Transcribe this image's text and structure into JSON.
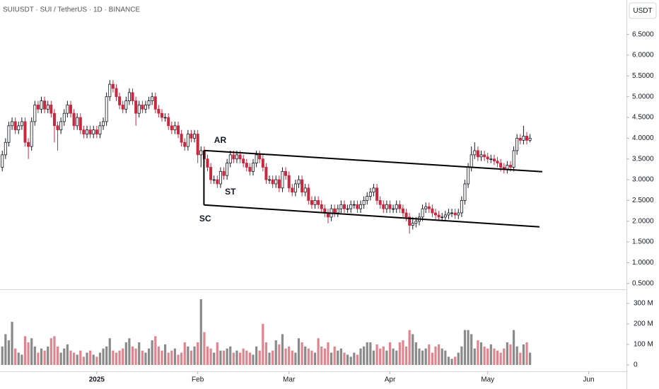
{
  "chart_data": {
    "type": "candlestick",
    "title": "SUIUSDT · SUI / TetherUS · 1D · BINANCE",
    "currency": "USDT",
    "open": [
      3.3,
      3.6,
      3.9,
      4.3,
      4.4,
      4.2,
      4.3,
      4.4,
      3.9,
      3.8,
      4.4,
      4.8,
      4.7,
      4.9,
      4.7,
      4.8,
      4.6,
      4.3,
      4.2,
      4.4,
      4.6,
      4.8,
      4.6,
      4.3,
      4.5,
      4.2,
      4.1,
      4.2,
      4.1,
      4.2,
      4.1,
      4.3,
      4.4,
      5.0,
      5.3,
      5.2,
      5.0,
      4.8,
      4.7,
      4.9,
      5.1,
      4.9,
      4.6,
      4.8,
      4.7,
      4.8,
      4.9,
      5.0,
      4.7,
      4.6,
      4.5,
      4.5,
      4.3,
      4.2,
      4.3,
      4.1,
      3.9,
      3.8,
      4.1,
      4.0,
      4.1,
      3.6,
      3.7,
      3.5,
      3.3,
      3.0,
      3.0,
      2.9,
      3.2,
      3.1,
      3.4,
      3.6,
      3.5,
      3.6,
      3.5,
      3.4,
      3.3,
      3.2,
      3.4,
      3.6,
      3.5,
      3.3,
      3.0,
      3.0,
      2.9,
      3.0,
      2.8,
      3.2,
      3.1,
      2.8,
      2.7,
      2.9,
      3.0,
      2.7,
      2.8,
      2.5,
      2.4,
      2.5,
      2.4,
      2.3,
      2.2,
      2.1,
      2.3,
      2.2,
      2.3,
      2.4,
      2.3,
      2.3,
      2.4,
      2.4,
      2.3,
      2.4,
      2.5,
      2.6,
      2.7,
      2.8,
      2.5,
      2.4,
      2.3,
      2.4,
      2.3,
      2.3,
      2.4,
      2.3,
      2.2,
      2.1,
      1.9,
      1.95,
      2.0,
      2.1,
      2.3,
      2.35,
      2.3,
      2.2,
      2.15,
      2.1,
      2.1,
      2.15,
      2.2,
      2.2,
      2.15,
      2.2,
      2.5,
      2.9,
      3.3,
      3.6,
      3.7,
      3.55,
      3.6,
      3.55,
      3.5,
      3.5,
      3.45,
      3.4,
      3.3,
      3.25,
      3.35,
      3.3,
      3.7,
      4.0,
      3.95,
      4.05,
      3.95
    ],
    "high": [
      3.7,
      4.0,
      4.4,
      4.5,
      4.5,
      4.4,
      4.5,
      4.5,
      4.0,
      4.5,
      4.9,
      4.9,
      5.0,
      5.0,
      4.9,
      4.9,
      4.7,
      4.4,
      4.5,
      4.7,
      4.9,
      4.9,
      4.7,
      4.6,
      4.6,
      4.3,
      4.3,
      4.3,
      4.3,
      4.3,
      4.4,
      4.5,
      5.1,
      5.4,
      5.4,
      5.3,
      5.1,
      4.9,
      5.0,
      5.2,
      5.2,
      5.0,
      4.9,
      4.9,
      4.9,
      5.0,
      5.1,
      5.1,
      4.8,
      4.7,
      4.6,
      4.6,
      4.4,
      4.4,
      4.4,
      4.2,
      4.0,
      4.2,
      4.2,
      4.2,
      4.2,
      3.8,
      3.8,
      3.6,
      3.4,
      3.1,
      3.1,
      3.3,
      3.3,
      3.5,
      3.7,
      3.7,
      3.7,
      3.7,
      3.6,
      3.5,
      3.4,
      3.5,
      3.7,
      3.7,
      3.6,
      3.4,
      3.1,
      3.1,
      3.1,
      3.1,
      3.3,
      3.3,
      3.2,
      2.9,
      3.0,
      3.1,
      3.1,
      2.9,
      2.9,
      2.6,
      2.6,
      2.6,
      2.5,
      2.4,
      2.3,
      2.4,
      2.4,
      2.4,
      2.5,
      2.5,
      2.4,
      2.5,
      2.5,
      2.5,
      2.5,
      2.6,
      2.7,
      2.8,
      2.9,
      2.9,
      2.6,
      2.5,
      2.5,
      2.5,
      2.4,
      2.5,
      2.5,
      2.4,
      2.3,
      2.2,
      2.1,
      2.1,
      2.2,
      2.4,
      2.45,
      2.45,
      2.4,
      2.3,
      2.25,
      2.2,
      2.25,
      2.3,
      2.3,
      2.3,
      2.3,
      2.6,
      3.0,
      3.4,
      3.8,
      3.9,
      3.8,
      3.7,
      3.7,
      3.65,
      3.6,
      3.6,
      3.55,
      3.5,
      3.4,
      3.45,
      3.45,
      3.8,
      4.1,
      4.1,
      4.3,
      4.15,
      4.1
    ],
    "low": [
      3.2,
      3.5,
      3.8,
      4.2,
      4.1,
      4.1,
      4.2,
      3.8,
      3.5,
      3.7,
      4.3,
      4.6,
      4.6,
      4.6,
      4.6,
      4.5,
      3.9,
      3.7,
      4.1,
      4.3,
      4.5,
      4.5,
      4.2,
      4.2,
      4.1,
      4.0,
      4.0,
      4.0,
      4.0,
      4.0,
      4.0,
      4.2,
      4.3,
      4.9,
      5.1,
      4.9,
      4.7,
      4.6,
      4.6,
      4.8,
      4.8,
      4.3,
      4.5,
      4.6,
      4.6,
      4.7,
      4.8,
      4.6,
      4.5,
      4.4,
      4.4,
      4.2,
      4.1,
      4.1,
      4.0,
      3.8,
      3.7,
      3.7,
      3.9,
      3.9,
      3.4,
      3.3,
      3.4,
      3.2,
      2.9,
      2.9,
      2.8,
      2.8,
      3.0,
      3.0,
      3.3,
      3.4,
      3.4,
      3.4,
      3.3,
      3.2,
      3.1,
      3.1,
      3.3,
      3.4,
      3.2,
      2.9,
      2.9,
      2.8,
      2.8,
      2.7,
      2.7,
      3.0,
      2.7,
      2.6,
      2.6,
      2.8,
      2.6,
      2.6,
      2.4,
      2.3,
      2.3,
      2.3,
      2.2,
      2.1,
      1.95,
      2.0,
      2.1,
      2.1,
      2.2,
      2.2,
      2.2,
      2.2,
      2.3,
      2.2,
      2.2,
      2.3,
      2.4,
      2.5,
      2.6,
      2.4,
      2.3,
      2.2,
      2.2,
      2.2,
      2.2,
      2.2,
      2.2,
      2.1,
      2.0,
      1.7,
      1.8,
      1.85,
      1.9,
      2.0,
      2.2,
      2.2,
      2.1,
      2.05,
      2.0,
      2.0,
      2.0,
      2.05,
      2.1,
      2.05,
      2.05,
      2.1,
      2.4,
      2.8,
      3.2,
      3.5,
      3.45,
      3.45,
      3.45,
      3.4,
      3.4,
      3.35,
      3.3,
      3.2,
      3.15,
      3.15,
      3.2,
      3.2,
      3.6,
      3.85,
      3.85,
      3.85,
      3.9
    ],
    "close": [
      3.6,
      3.9,
      4.3,
      4.4,
      4.2,
      4.3,
      4.4,
      3.9,
      3.8,
      4.4,
      4.8,
      4.7,
      4.9,
      4.7,
      4.8,
      4.6,
      4.3,
      4.2,
      4.4,
      4.6,
      4.8,
      4.6,
      4.3,
      4.5,
      4.2,
      4.1,
      4.2,
      4.1,
      4.2,
      4.1,
      4.3,
      4.4,
      5.0,
      5.3,
      5.2,
      5.0,
      4.8,
      4.7,
      4.9,
      5.1,
      4.9,
      4.6,
      4.8,
      4.7,
      4.8,
      4.9,
      5.0,
      4.7,
      4.6,
      4.5,
      4.5,
      4.3,
      4.2,
      4.3,
      4.1,
      3.9,
      3.8,
      4.1,
      4.0,
      4.1,
      3.6,
      3.7,
      3.5,
      3.3,
      3.0,
      3.0,
      2.9,
      3.2,
      3.1,
      3.4,
      3.6,
      3.5,
      3.6,
      3.5,
      3.4,
      3.3,
      3.2,
      3.4,
      3.6,
      3.5,
      3.3,
      3.0,
      3.0,
      2.9,
      3.0,
      2.8,
      3.2,
      3.1,
      2.8,
      2.7,
      2.9,
      3.0,
      2.7,
      2.8,
      2.5,
      2.4,
      2.5,
      2.4,
      2.3,
      2.2,
      2.1,
      2.3,
      2.2,
      2.3,
      2.4,
      2.3,
      2.3,
      2.4,
      2.4,
      2.3,
      2.4,
      2.5,
      2.6,
      2.7,
      2.8,
      2.5,
      2.4,
      2.3,
      2.4,
      2.3,
      2.3,
      2.4,
      2.3,
      2.2,
      2.1,
      1.9,
      1.95,
      2.0,
      2.1,
      2.3,
      2.35,
      2.3,
      2.2,
      2.15,
      2.1,
      2.1,
      2.15,
      2.2,
      2.2,
      2.15,
      2.2,
      2.5,
      2.9,
      3.3,
      3.6,
      3.7,
      3.55,
      3.6,
      3.55,
      3.5,
      3.5,
      3.45,
      3.4,
      3.3,
      3.25,
      3.35,
      3.3,
      3.7,
      4.0,
      3.95,
      4.05,
      3.95,
      4.0
    ],
    "volume": [
      90,
      150,
      120,
      210,
      80,
      60,
      50,
      140,
      110,
      130,
      90,
      60,
      80,
      70,
      90,
      130,
      140,
      90,
      60,
      80,
      100,
      70,
      60,
      50,
      70,
      40,
      60,
      70,
      50,
      40,
      60,
      80,
      90,
      130,
      70,
      60,
      70,
      80,
      110,
      130,
      90,
      80,
      110,
      70,
      60,
      80,
      120,
      140,
      90,
      70,
      100,
      60,
      70,
      80,
      50,
      60,
      110,
      90,
      70,
      90,
      110,
      320,
      160,
      90,
      80,
      60,
      110,
      70,
      70,
      80,
      90,
      60,
      70,
      60,
      80,
      70,
      60,
      50,
      90,
      70,
      200,
      110,
      60,
      70,
      120,
      100,
      150,
      80,
      90,
      70,
      60,
      130,
      110,
      90,
      80,
      70,
      60,
      130,
      90,
      80,
      110,
      60,
      90,
      70,
      80,
      60,
      50,
      40,
      60,
      50,
      80,
      90,
      110,
      110,
      70,
      100,
      80,
      90,
      70,
      110,
      80,
      70,
      110,
      120,
      90,
      170,
      150,
      110,
      80,
      70,
      80,
      100,
      60,
      90,
      100,
      80,
      70,
      40,
      30,
      40,
      60,
      90,
      170,
      170,
      150,
      80,
      120,
      110,
      90,
      80,
      100,
      80,
      70,
      60,
      80,
      110,
      100,
      170,
      90,
      60,
      100,
      110,
      60
    ],
    "up_color": "#ffffff",
    "down_color": "#c8283f",
    "volume_up_color": "#8a8a8a",
    "volume_down_color": "#e0848e",
    "xlim": [
      -0.7,
      191.6
    ],
    "xticks": [
      {
        "value": 29,
        "label": "2025"
      },
      {
        "value": 60,
        "label": "Feb"
      },
      {
        "value": 88,
        "label": "Mar"
      },
      {
        "value": 119,
        "label": "Apr"
      },
      {
        "value": 149,
        "label": "May"
      },
      {
        "value": 180,
        "label": "Jun"
      }
    ],
    "ylim": [
      0.36,
      7.33
    ],
    "yticks": [
      {
        "value": 0.5,
        "label": "0.5000"
      },
      {
        "value": 1.0,
        "label": "1.0000"
      },
      {
        "value": 1.5,
        "label": "1.5000"
      },
      {
        "value": 2.0,
        "label": "2.0000"
      },
      {
        "value": 2.5,
        "label": "2.5000"
      },
      {
        "value": 3.0,
        "label": "3.0000"
      },
      {
        "value": 3.5,
        "label": "3.5000"
      },
      {
        "value": 4.0,
        "label": "4.0000"
      },
      {
        "value": 4.5,
        "label": "4.5000"
      },
      {
        "value": 5.0,
        "label": "5.0000"
      },
      {
        "value": 5.5,
        "label": "5.5000"
      },
      {
        "value": 6.0,
        "label": "6.0000"
      },
      {
        "value": 6.5,
        "label": "6.5000"
      }
    ],
    "volume_ylim": [
      -31,
      365
    ],
    "volume_yticks": [
      0,
      {
        "value": 100,
        "label": "100 M"
      },
      {
        "value": 200,
        "label": "200 M"
      },
      {
        "value": 300,
        "label": "300 M"
      }
    ],
    "trendlines": [
      {
        "x": [
          61.9,
          165.75
        ],
        "y": [
          3.705,
          3.193
        ]
      },
      {
        "x": [
          61.9,
          164.9
        ],
        "y": [
          2.392,
          1.864
        ]
      },
      {
        "x": [
          61.9,
          61.9
        ],
        "y": [
          3.705,
          2.392
        ]
      }
    ],
    "annotations": [
      {
        "text": "AR",
        "x": 66.9,
        "y": 3.94
      },
      {
        "text": "ST",
        "x": 70,
        "y": 2.7
      },
      {
        "text": "SC",
        "x": 62.3,
        "y": 2.05
      }
    ]
  }
}
